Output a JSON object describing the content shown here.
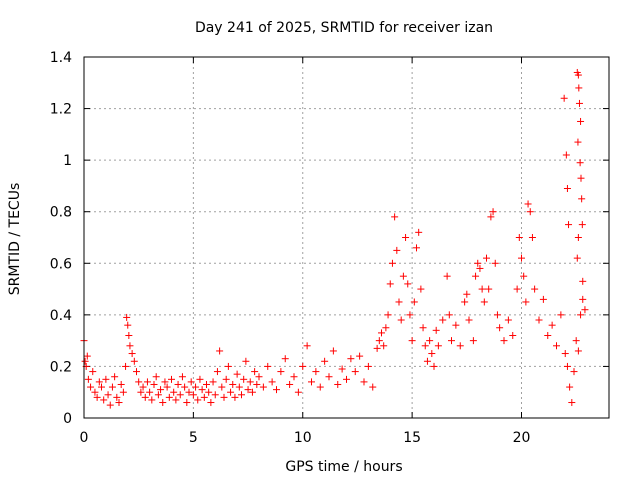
{
  "chart_data": {
    "type": "scatter",
    "title": "Day 241 of 2025, SRMTID for receiver izan",
    "xlabel": "GPS time / hours",
    "ylabel": "SRMTID / TECUs",
    "xlim": [
      0,
      24
    ],
    "ylim": [
      0,
      1.4
    ],
    "xticks": [
      0,
      5,
      10,
      15,
      20
    ],
    "yticks": [
      0,
      0.2,
      0.4,
      0.6,
      0.8,
      1,
      1.2,
      1.4
    ],
    "xtick_labels": [
      "0",
      "5",
      "10",
      "15",
      "20"
    ],
    "ytick_labels": [
      "0",
      "0.2",
      "0.4",
      "0.6",
      "0.8",
      "1",
      "1.2",
      "1.4"
    ],
    "grid": true,
    "marker": "+",
    "marker_color": "#ff0000",
    "series": [
      {
        "name": "izan",
        "points": [
          [
            0.0,
            0.3
          ],
          [
            0.05,
            0.22
          ],
          [
            0.1,
            0.2
          ],
          [
            0.15,
            0.24
          ],
          [
            0.2,
            0.15
          ],
          [
            0.3,
            0.12
          ],
          [
            0.4,
            0.18
          ],
          [
            0.5,
            0.1
          ],
          [
            0.6,
            0.08
          ],
          [
            0.7,
            0.14
          ],
          [
            0.8,
            0.12
          ],
          [
            0.9,
            0.07
          ],
          [
            1.0,
            0.15
          ],
          [
            1.1,
            0.09
          ],
          [
            1.2,
            0.05
          ],
          [
            1.3,
            0.12
          ],
          [
            1.4,
            0.16
          ],
          [
            1.5,
            0.08
          ],
          [
            1.6,
            0.06
          ],
          [
            1.7,
            0.13
          ],
          [
            1.8,
            0.1
          ],
          [
            1.9,
            0.2
          ],
          [
            1.95,
            0.39
          ],
          [
            2.0,
            0.36
          ],
          [
            2.05,
            0.32
          ],
          [
            2.1,
            0.28
          ],
          [
            2.2,
            0.25
          ],
          [
            2.3,
            0.22
          ],
          [
            2.4,
            0.18
          ],
          [
            2.5,
            0.14
          ],
          [
            2.6,
            0.1
          ],
          [
            2.7,
            0.12
          ],
          [
            2.8,
            0.08
          ],
          [
            2.9,
            0.14
          ],
          [
            3.0,
            0.1
          ],
          [
            3.1,
            0.07
          ],
          [
            3.2,
            0.13
          ],
          [
            3.3,
            0.16
          ],
          [
            3.4,
            0.09
          ],
          [
            3.5,
            0.11
          ],
          [
            3.6,
            0.06
          ],
          [
            3.7,
            0.14
          ],
          [
            3.8,
            0.12
          ],
          [
            3.9,
            0.08
          ],
          [
            4.0,
            0.15
          ],
          [
            4.1,
            0.1
          ],
          [
            4.2,
            0.07
          ],
          [
            4.3,
            0.13
          ],
          [
            4.4,
            0.09
          ],
          [
            4.5,
            0.16
          ],
          [
            4.6,
            0.12
          ],
          [
            4.7,
            0.06
          ],
          [
            4.8,
            0.1
          ],
          [
            4.9,
            0.14
          ],
          [
            5.0,
            0.09
          ],
          [
            5.1,
            0.12
          ],
          [
            5.2,
            0.07
          ],
          [
            5.3,
            0.15
          ],
          [
            5.4,
            0.11
          ],
          [
            5.5,
            0.08
          ],
          [
            5.6,
            0.13
          ],
          [
            5.7,
            0.1
          ],
          [
            5.8,
            0.06
          ],
          [
            5.9,
            0.14
          ],
          [
            6.0,
            0.09
          ],
          [
            6.1,
            0.18
          ],
          [
            6.2,
            0.26
          ],
          [
            6.3,
            0.12
          ],
          [
            6.4,
            0.08
          ],
          [
            6.5,
            0.15
          ],
          [
            6.6,
            0.2
          ],
          [
            6.7,
            0.1
          ],
          [
            6.8,
            0.13
          ],
          [
            6.9,
            0.08
          ],
          [
            7.0,
            0.17
          ],
          [
            7.1,
            0.12
          ],
          [
            7.2,
            0.09
          ],
          [
            7.3,
            0.15
          ],
          [
            7.4,
            0.22
          ],
          [
            7.5,
            0.11
          ],
          [
            7.6,
            0.14
          ],
          [
            7.7,
            0.1
          ],
          [
            7.8,
            0.18
          ],
          [
            7.9,
            0.13
          ],
          [
            8.0,
            0.16
          ],
          [
            8.2,
            0.12
          ],
          [
            8.4,
            0.2
          ],
          [
            8.6,
            0.14
          ],
          [
            8.8,
            0.11
          ],
          [
            9.0,
            0.18
          ],
          [
            9.2,
            0.23
          ],
          [
            9.4,
            0.13
          ],
          [
            9.6,
            0.16
          ],
          [
            9.8,
            0.1
          ],
          [
            10.0,
            0.2
          ],
          [
            10.2,
            0.28
          ],
          [
            10.4,
            0.14
          ],
          [
            10.6,
            0.18
          ],
          [
            10.8,
            0.12
          ],
          [
            11.0,
            0.22
          ],
          [
            11.2,
            0.16
          ],
          [
            11.4,
            0.26
          ],
          [
            11.6,
            0.13
          ],
          [
            11.8,
            0.19
          ],
          [
            12.0,
            0.15
          ],
          [
            12.2,
            0.23
          ],
          [
            12.4,
            0.18
          ],
          [
            12.6,
            0.24
          ],
          [
            12.8,
            0.14
          ],
          [
            13.0,
            0.2
          ],
          [
            13.2,
            0.12
          ],
          [
            13.4,
            0.27
          ],
          [
            13.5,
            0.3
          ],
          [
            13.6,
            0.33
          ],
          [
            13.7,
            0.28
          ],
          [
            13.8,
            0.35
          ],
          [
            13.9,
            0.4
          ],
          [
            14.0,
            0.52
          ],
          [
            14.1,
            0.6
          ],
          [
            14.2,
            0.78
          ],
          [
            14.3,
            0.65
          ],
          [
            14.4,
            0.45
          ],
          [
            14.5,
            0.38
          ],
          [
            14.6,
            0.55
          ],
          [
            14.7,
            0.7
          ],
          [
            14.8,
            0.52
          ],
          [
            14.9,
            0.4
          ],
          [
            15.0,
            0.3
          ],
          [
            15.1,
            0.45
          ],
          [
            15.2,
            0.66
          ],
          [
            15.3,
            0.72
          ],
          [
            15.4,
            0.5
          ],
          [
            15.5,
            0.35
          ],
          [
            15.6,
            0.28
          ],
          [
            15.7,
            0.22
          ],
          [
            15.8,
            0.3
          ],
          [
            15.9,
            0.25
          ],
          [
            16.0,
            0.2
          ],
          [
            16.1,
            0.34
          ],
          [
            16.2,
            0.28
          ],
          [
            16.4,
            0.38
          ],
          [
            16.6,
            0.55
          ],
          [
            16.7,
            0.4
          ],
          [
            16.8,
            0.3
          ],
          [
            17.0,
            0.36
          ],
          [
            17.2,
            0.28
          ],
          [
            17.4,
            0.45
          ],
          [
            17.5,
            0.48
          ],
          [
            17.6,
            0.38
          ],
          [
            17.8,
            0.3
          ],
          [
            17.9,
            0.55
          ],
          [
            18.0,
            0.6
          ],
          [
            18.1,
            0.58
          ],
          [
            18.2,
            0.5
          ],
          [
            18.3,
            0.45
          ],
          [
            18.4,
            0.62
          ],
          [
            18.5,
            0.5
          ],
          [
            18.6,
            0.78
          ],
          [
            18.7,
            0.8
          ],
          [
            18.8,
            0.6
          ],
          [
            18.9,
            0.4
          ],
          [
            19.0,
            0.35
          ],
          [
            19.2,
            0.3
          ],
          [
            19.4,
            0.38
          ],
          [
            19.6,
            0.32
          ],
          [
            19.8,
            0.5
          ],
          [
            19.9,
            0.7
          ],
          [
            20.0,
            0.62
          ],
          [
            20.1,
            0.55
          ],
          [
            20.2,
            0.45
          ],
          [
            20.3,
            0.83
          ],
          [
            20.4,
            0.8
          ],
          [
            20.5,
            0.7
          ],
          [
            20.6,
            0.5
          ],
          [
            20.8,
            0.38
          ],
          [
            21.0,
            0.46
          ],
          [
            21.2,
            0.32
          ],
          [
            21.4,
            0.36
          ],
          [
            21.6,
            0.28
          ],
          [
            21.8,
            0.4
          ],
          [
            22.0,
            0.25
          ],
          [
            22.1,
            0.2
          ],
          [
            22.2,
            0.12
          ],
          [
            22.3,
            0.06
          ],
          [
            22.4,
            0.18
          ],
          [
            22.5,
            0.3
          ],
          [
            22.6,
            0.26
          ],
          [
            22.7,
            0.4
          ],
          [
            22.8,
            0.46
          ],
          [
            22.9,
            0.42
          ],
          [
            21.95,
            1.24
          ],
          [
            22.05,
            1.02
          ],
          [
            22.1,
            0.89
          ],
          [
            22.15,
            0.75
          ],
          [
            22.55,
            1.34
          ],
          [
            22.6,
            1.33
          ],
          [
            22.62,
            1.28
          ],
          [
            22.65,
            1.22
          ],
          [
            22.7,
            1.15
          ],
          [
            22.58,
            1.07
          ],
          [
            22.68,
            0.99
          ],
          [
            22.72,
            0.93
          ],
          [
            22.75,
            0.85
          ],
          [
            22.78,
            0.75
          ],
          [
            22.6,
            0.7
          ],
          [
            22.55,
            0.62
          ],
          [
            22.8,
            0.53
          ]
        ]
      }
    ]
  }
}
